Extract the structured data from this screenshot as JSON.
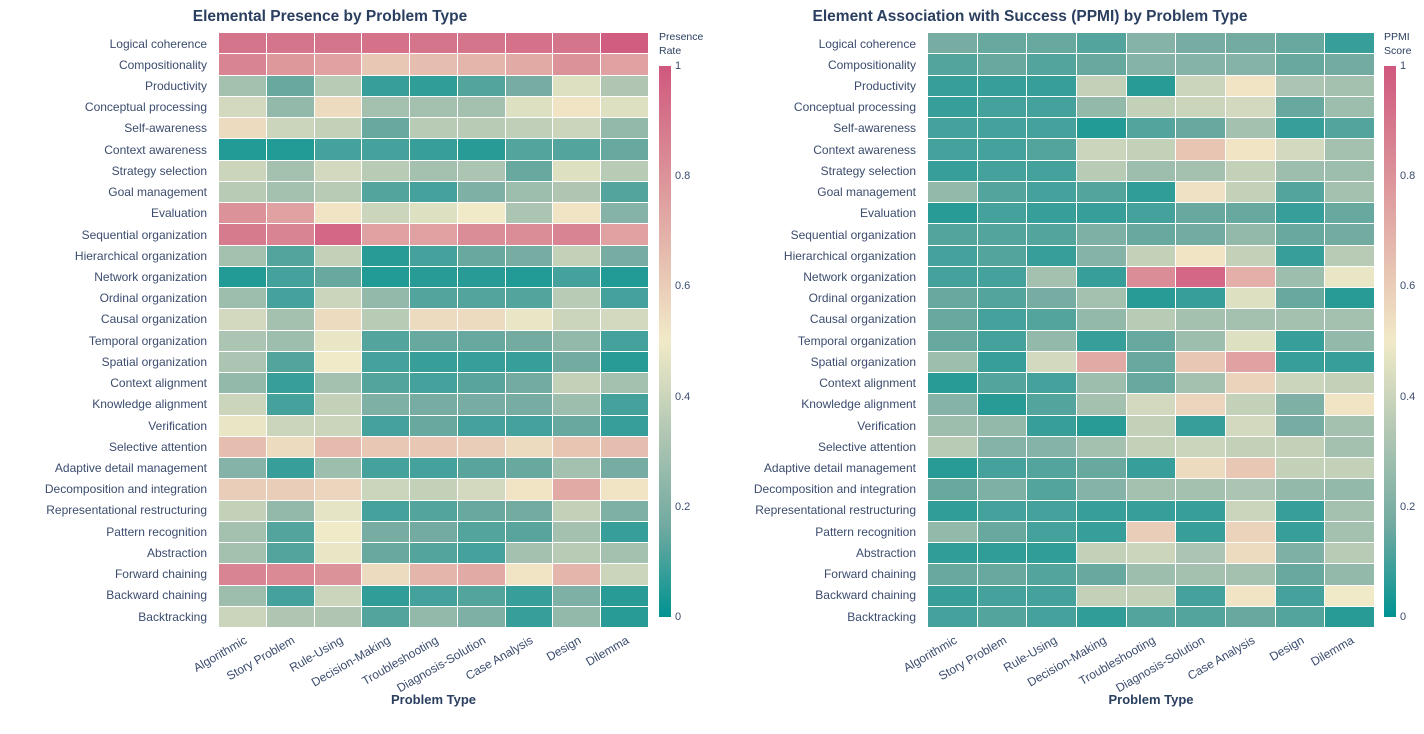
{
  "figure": {
    "background": "#ffffff",
    "text_color": "#2a3f5f",
    "colorscale": {
      "name": "tealrose",
      "stops": [
        [
          0.0,
          [
            0,
            147,
            146
          ]
        ],
        [
          0.1667,
          [
            114,
            170,
            161
          ]
        ],
        [
          0.3333,
          [
            177,
            199,
            179
          ]
        ],
        [
          0.5,
          [
            241,
            234,
            200
          ]
        ],
        [
          0.6667,
          [
            229,
            185,
            173
          ]
        ],
        [
          0.8333,
          [
            217,
            137,
            148
          ]
        ],
        [
          1.0,
          [
            208,
            88,
            126
          ]
        ]
      ]
    }
  },
  "chart_data": [
    {
      "type": "heatmap",
      "title": "Elemental Presence by Problem Type",
      "xlabel": "Problem Type",
      "colorbar_title": [
        "Presence",
        "Rate"
      ],
      "colorbar_ticks": [
        {
          "label": "1",
          "value": 1.0
        },
        {
          "label": "0.8",
          "value": 0.8
        },
        {
          "label": "0.6",
          "value": 0.6
        },
        {
          "label": "0.4",
          "value": 0.4
        },
        {
          "label": "0.2",
          "value": 0.2
        },
        {
          "label": "0",
          "value": 0.0
        }
      ],
      "zmin": 0,
      "zmax": 1,
      "x_categories": [
        "Algorithmic",
        "Story Problem",
        "Rule-Using",
        "Decision-Making",
        "Troubleshooting",
        "Diagnosis-Solution",
        "Case Analysis",
        "Design",
        "Dilemma"
      ],
      "y_categories": [
        "Logical coherence",
        "Compositionality",
        "Productivity",
        "Conceptual processing",
        "Self-awareness",
        "Context awareness",
        "Strategy selection",
        "Goal management",
        "Evaluation",
        "Sequential organization",
        "Hierarchical organization",
        "Network organization",
        "Ordinal organization",
        "Causal organization",
        "Temporal organization",
        "Spatial organization",
        "Context alignment",
        "Knowledge alignment",
        "Verification",
        "Selective attention",
        "Adaptive detail management",
        "Decomposition and integration",
        "Representational restructuring",
        "Pattern recognition",
        "Abstraction",
        "Forward chaining",
        "Backward chaining",
        "Backtracking"
      ],
      "values": [
        [
          0.9,
          0.9,
          0.9,
          0.91,
          0.9,
          0.9,
          0.91,
          0.9,
          0.98
        ],
        [
          0.85,
          0.78,
          0.75,
          0.62,
          0.65,
          0.68,
          0.72,
          0.8,
          0.75
        ],
        [
          0.3,
          0.15,
          0.35,
          0.08,
          0.07,
          0.12,
          0.18,
          0.45,
          0.33
        ],
        [
          0.42,
          0.25,
          0.55,
          0.3,
          0.3,
          0.3,
          0.45,
          0.52,
          0.45
        ],
        [
          0.55,
          0.4,
          0.38,
          0.15,
          0.35,
          0.35,
          0.37,
          0.4,
          0.25
        ],
        [
          0.05,
          0.05,
          0.1,
          0.1,
          0.08,
          0.06,
          0.12,
          0.12,
          0.15
        ],
        [
          0.4,
          0.3,
          0.42,
          0.35,
          0.3,
          0.32,
          0.15,
          0.45,
          0.35
        ],
        [
          0.35,
          0.3,
          0.35,
          0.12,
          0.1,
          0.2,
          0.28,
          0.33,
          0.12
        ],
        [
          0.8,
          0.75,
          0.52,
          0.4,
          0.45,
          0.5,
          0.32,
          0.52,
          0.22
        ],
        [
          0.88,
          0.85,
          0.95,
          0.75,
          0.75,
          0.82,
          0.82,
          0.85,
          0.75
        ],
        [
          0.3,
          0.12,
          0.38,
          0.06,
          0.1,
          0.15,
          0.18,
          0.38,
          0.18
        ],
        [
          0.05,
          0.1,
          0.15,
          0.05,
          0.06,
          0.06,
          0.05,
          0.1,
          0.05
        ],
        [
          0.28,
          0.1,
          0.4,
          0.25,
          0.12,
          0.12,
          0.12,
          0.35,
          0.1
        ],
        [
          0.42,
          0.3,
          0.55,
          0.35,
          0.55,
          0.55,
          0.48,
          0.4,
          0.42
        ],
        [
          0.32,
          0.28,
          0.48,
          0.12,
          0.15,
          0.15,
          0.17,
          0.25,
          0.1
        ],
        [
          0.32,
          0.12,
          0.5,
          0.1,
          0.08,
          0.08,
          0.08,
          0.17,
          0.06
        ],
        [
          0.25,
          0.08,
          0.3,
          0.12,
          0.1,
          0.13,
          0.17,
          0.38,
          0.3
        ],
        [
          0.4,
          0.1,
          0.38,
          0.2,
          0.18,
          0.18,
          0.18,
          0.28,
          0.1
        ],
        [
          0.48,
          0.4,
          0.4,
          0.1,
          0.15,
          0.1,
          0.1,
          0.15,
          0.08
        ],
        [
          0.65,
          0.55,
          0.66,
          0.62,
          0.62,
          0.6,
          0.55,
          0.63,
          0.65
        ],
        [
          0.22,
          0.08,
          0.28,
          0.1,
          0.1,
          0.13,
          0.15,
          0.3,
          0.18
        ],
        [
          0.6,
          0.6,
          0.57,
          0.4,
          0.38,
          0.42,
          0.52,
          0.72,
          0.52
        ],
        [
          0.38,
          0.25,
          0.47,
          0.1,
          0.12,
          0.15,
          0.17,
          0.38,
          0.2
        ],
        [
          0.3,
          0.12,
          0.5,
          0.18,
          0.17,
          0.12,
          0.13,
          0.3,
          0.08
        ],
        [
          0.3,
          0.12,
          0.48,
          0.15,
          0.12,
          0.1,
          0.3,
          0.35,
          0.3
        ],
        [
          0.85,
          0.83,
          0.8,
          0.55,
          0.68,
          0.72,
          0.52,
          0.68,
          0.4
        ],
        [
          0.28,
          0.1,
          0.4,
          0.07,
          0.1,
          0.12,
          0.08,
          0.2,
          0.06
        ],
        [
          0.4,
          0.33,
          0.33,
          0.12,
          0.25,
          0.2,
          0.08,
          0.25,
          0.06
        ]
      ]
    },
    {
      "type": "heatmap",
      "title": "Element Association with Success (PPMI) by Problem Type",
      "xlabel": "Problem Type",
      "colorbar_title": [
        "PPMI",
        "Score"
      ],
      "colorbar_ticks": [
        {
          "label": "1",
          "value": 1.0
        },
        {
          "label": "0.8",
          "value": 0.8
        },
        {
          "label": "0.6",
          "value": 0.6
        },
        {
          "label": "0.4",
          "value": 0.4
        },
        {
          "label": "0.2",
          "value": 0.2
        },
        {
          "label": "0",
          "value": 0.0
        }
      ],
      "zmin": 0,
      "zmax": 1,
      "x_categories": [
        "Algorithmic",
        "Story Problem",
        "Rule-Using",
        "Decision-Making",
        "Troubleshooting",
        "Diagnosis-Solution",
        "Case Analysis",
        "Design",
        "Dilemma"
      ],
      "y_categories": [
        "Logical coherence",
        "Compositionality",
        "Productivity",
        "Conceptual processing",
        "Self-awareness",
        "Context awareness",
        "Strategy selection",
        "Goal management",
        "Evaluation",
        "Sequential organization",
        "Hierarchical organization",
        "Network organization",
        "Ordinal organization",
        "Causal organization",
        "Temporal organization",
        "Spatial organization",
        "Context alignment",
        "Knowledge alignment",
        "Verification",
        "Selective attention",
        "Adaptive detail management",
        "Decomposition and integration",
        "Representational restructuring",
        "Pattern recognition",
        "Abstraction",
        "Forward chaining",
        "Backward chaining",
        "Backtracking"
      ],
      "values": [
        [
          0.18,
          0.15,
          0.15,
          0.12,
          0.22,
          0.18,
          0.17,
          0.15,
          0.08
        ],
        [
          0.12,
          0.15,
          0.12,
          0.15,
          0.22,
          0.22,
          0.22,
          0.15,
          0.17
        ],
        [
          0.08,
          0.08,
          0.08,
          0.38,
          0.06,
          0.4,
          0.52,
          0.32,
          0.3
        ],
        [
          0.08,
          0.1,
          0.1,
          0.25,
          0.38,
          0.4,
          0.42,
          0.15,
          0.28
        ],
        [
          0.1,
          0.1,
          0.1,
          0.05,
          0.12,
          0.15,
          0.3,
          0.08,
          0.12
        ],
        [
          0.1,
          0.1,
          0.12,
          0.4,
          0.38,
          0.63,
          0.52,
          0.42,
          0.3
        ],
        [
          0.08,
          0.1,
          0.1,
          0.35,
          0.28,
          0.3,
          0.38,
          0.28,
          0.28
        ],
        [
          0.25,
          0.12,
          0.1,
          0.12,
          0.07,
          0.53,
          0.38,
          0.12,
          0.3
        ],
        [
          0.06,
          0.1,
          0.08,
          0.08,
          0.1,
          0.15,
          0.15,
          0.08,
          0.15
        ],
        [
          0.12,
          0.12,
          0.12,
          0.2,
          0.15,
          0.17,
          0.25,
          0.15,
          0.17
        ],
        [
          0.1,
          0.12,
          0.08,
          0.22,
          0.38,
          0.52,
          0.38,
          0.08,
          0.35
        ],
        [
          0.1,
          0.1,
          0.3,
          0.08,
          0.82,
          0.95,
          0.7,
          0.28,
          0.48
        ],
        [
          0.15,
          0.12,
          0.18,
          0.3,
          0.06,
          0.08,
          0.45,
          0.15,
          0.06
        ],
        [
          0.15,
          0.1,
          0.12,
          0.25,
          0.35,
          0.3,
          0.3,
          0.3,
          0.3
        ],
        [
          0.15,
          0.1,
          0.25,
          0.08,
          0.15,
          0.28,
          0.45,
          0.08,
          0.25
        ],
        [
          0.28,
          0.08,
          0.42,
          0.72,
          0.15,
          0.62,
          0.75,
          0.08,
          0.08
        ],
        [
          0.06,
          0.12,
          0.1,
          0.28,
          0.15,
          0.3,
          0.58,
          0.4,
          0.38
        ],
        [
          0.22,
          0.06,
          0.12,
          0.3,
          0.42,
          0.57,
          0.38,
          0.2,
          0.52
        ],
        [
          0.28,
          0.25,
          0.08,
          0.06,
          0.38,
          0.08,
          0.42,
          0.18,
          0.3
        ],
        [
          0.35,
          0.22,
          0.22,
          0.3,
          0.38,
          0.4,
          0.38,
          0.38,
          0.3
        ],
        [
          0.06,
          0.1,
          0.12,
          0.15,
          0.08,
          0.55,
          0.62,
          0.38,
          0.38
        ],
        [
          0.15,
          0.2,
          0.12,
          0.22,
          0.3,
          0.3,
          0.32,
          0.25,
          0.25
        ],
        [
          0.07,
          0.1,
          0.1,
          0.08,
          0.08,
          0.08,
          0.4,
          0.08,
          0.3
        ],
        [
          0.25,
          0.15,
          0.1,
          0.08,
          0.6,
          0.08,
          0.58,
          0.08,
          0.3
        ],
        [
          0.07,
          0.07,
          0.07,
          0.38,
          0.4,
          0.32,
          0.55,
          0.2,
          0.35
        ],
        [
          0.15,
          0.15,
          0.12,
          0.15,
          0.28,
          0.3,
          0.3,
          0.15,
          0.25
        ],
        [
          0.08,
          0.1,
          0.1,
          0.38,
          0.38,
          0.1,
          0.52,
          0.1,
          0.5
        ],
        [
          0.1,
          0.12,
          0.1,
          0.07,
          0.12,
          0.12,
          0.15,
          0.12,
          0.06
        ]
      ]
    }
  ]
}
